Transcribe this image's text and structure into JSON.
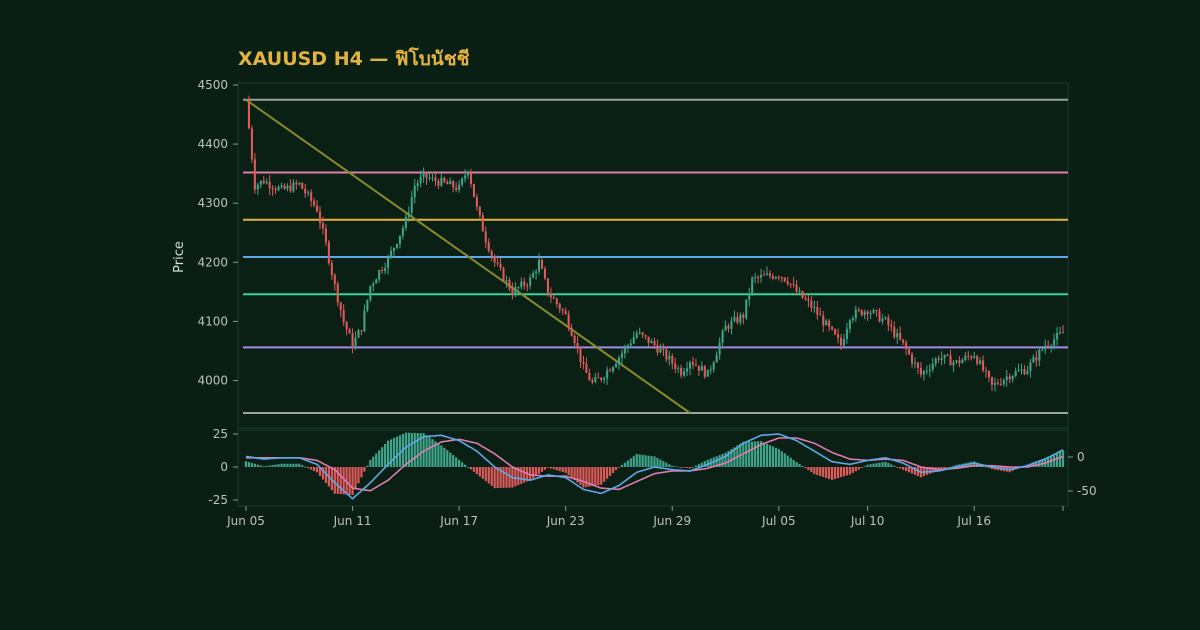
{
  "chart_data": [
    {
      "type": "candlestick",
      "title": "XAUUSD H4 — ฟิโบนัชชี",
      "ylabel": "Price",
      "ylim": [
        3945,
        4500
      ],
      "xlim_days": [
        "Jun 05",
        "Jul 21"
      ],
      "x_ticks": [
        "Jun 05",
        "Jun 11",
        "Jun 17",
        "Jun 23",
        "Jun 29",
        "Jul 05",
        "Jul 10",
        "Jul 16"
      ],
      "y_ticks": [
        4000,
        4100,
        4200,
        4300,
        4400,
        4500
      ],
      "grid": false,
      "price_path": [
        [
          "Jun 05",
          4475
        ],
        [
          "Jun 05",
          4330
        ],
        [
          "Jun 06",
          4338
        ],
        [
          "Jun 07",
          4322
        ],
        [
          "Jun 08",
          4332
        ],
        [
          "Jun 09",
          4290
        ],
        [
          "Jun 09",
          4230
        ],
        [
          "Jun 10",
          4160
        ],
        [
          "Jun 10",
          4100
        ],
        [
          "Jun 11",
          4060
        ],
        [
          "Jun 11",
          4090
        ],
        [
          "Jun 12",
          4160
        ],
        [
          "Jun 12",
          4185
        ],
        [
          "Jun 13",
          4205
        ],
        [
          "Jun 14",
          4270
        ],
        [
          "Jun 14",
          4330
        ],
        [
          "Jun 15",
          4345
        ],
        [
          "Jun 16",
          4335
        ],
        [
          "Jun 17",
          4325
        ],
        [
          "Jun 17",
          4360
        ],
        [
          "Jun 18",
          4290
        ],
        [
          "Jun 18",
          4240
        ],
        [
          "Jun 19",
          4200
        ],
        [
          "Jun 20",
          4150
        ],
        [
          "Jun 21",
          4170
        ],
        [
          "Jun 21",
          4200
        ],
        [
          "Jun 22",
          4150
        ],
        [
          "Jun 23",
          4110
        ],
        [
          "Jun 23",
          4070
        ],
        [
          "Jun 24",
          4020
        ],
        [
          "Jun 24",
          3995
        ],
        [
          "Jun 25",
          4005
        ],
        [
          "Jun 26",
          4040
        ],
        [
          "Jun 27",
          4080
        ],
        [
          "Jun 28",
          4060
        ],
        [
          "Jun 29",
          4030
        ],
        [
          "Jun 29",
          4015
        ],
        [
          "Jun 30",
          4035
        ],
        [
          "Jul 01",
          4010
        ],
        [
          "Jul 01",
          4050
        ],
        [
          "Jul 02",
          4090
        ],
        [
          "Jul 03",
          4110
        ],
        [
          "Jul 03",
          4170
        ],
        [
          "Jul 04",
          4175
        ],
        [
          "Jul 05",
          4180
        ],
        [
          "Jul 05",
          4170
        ],
        [
          "Jul 06",
          4150
        ],
        [
          "Jul 07",
          4120
        ],
        [
          "Jul 08",
          4080
        ],
        [
          "Jul 08",
          4060
        ],
        [
          "Jul 09",
          4110
        ],
        [
          "Jul 10",
          4120
        ],
        [
          "Jul 11",
          4100
        ],
        [
          "Jul 12",
          4060
        ],
        [
          "Jul 13",
          4010
        ],
        [
          "Jul 14",
          4040
        ],
        [
          "Jul 15",
          4030
        ],
        [
          "Jul 16",
          4045
        ],
        [
          "Jul 17",
          3990
        ],
        [
          "Jul 18",
          4010
        ],
        [
          "Jul 19",
          4020
        ],
        [
          "Jul 20",
          4060
        ],
        [
          "Jul 21",
          4080
        ]
      ],
      "fibonacci_levels": [
        {
          "price": 4475,
          "color": "#9aa3a0"
        },
        {
          "price": 4352,
          "color": "#e07bb0"
        },
        {
          "price": 4272,
          "color": "#e3b341"
        },
        {
          "price": 4209,
          "color": "#5fa8e8"
        },
        {
          "price": 4146,
          "color": "#34d399"
        },
        {
          "price": 4056,
          "color": "#a48be8"
        },
        {
          "price": 3945,
          "color": "#9aa3a0"
        }
      ],
      "trendline": {
        "from": [
          "Jun 05",
          4475
        ],
        "to": [
          "Jun 30",
          3945
        ],
        "color": "#8a8a2a"
      },
      "up_color": "#3fa58a",
      "down_color": "#e05a5a"
    },
    {
      "type": "macd",
      "y_ticks_left": [
        25,
        0,
        -25
      ],
      "y_ticks_right": [
        0,
        -50
      ],
      "ylim": [
        -27,
        25
      ],
      "line_colors": {
        "macd": "#5fa8e8",
        "signal": "#e07bb0"
      },
      "histogram_colors": {
        "positive": "#3fa58a",
        "negative": "#e05a5a"
      },
      "macd_path": [
        [
          "Jun 05",
          8
        ],
        [
          "Jun 06",
          6
        ],
        [
          "Jun 07",
          7
        ],
        [
          "Jun 08",
          7
        ],
        [
          "Jun 09",
          2
        ],
        [
          "Jun 10",
          -12
        ],
        [
          "Jun 11",
          -24
        ],
        [
          "Jun 12",
          -12
        ],
        [
          "Jun 13",
          2
        ],
        [
          "Jun 14",
          15
        ],
        [
          "Jun 15",
          23
        ],
        [
          "Jun 16",
          24
        ],
        [
          "Jun 17",
          20
        ],
        [
          "Jun 18",
          12
        ],
        [
          "Jun 19",
          0
        ],
        [
          "Jun 20",
          -8
        ],
        [
          "Jun 21",
          -10
        ],
        [
          "Jun 22",
          -6
        ],
        [
          "Jun 23",
          -8
        ],
        [
          "Jun 24",
          -17
        ],
        [
          "Jun 25",
          -20
        ],
        [
          "Jun 26",
          -14
        ],
        [
          "Jun 27",
          -4
        ],
        [
          "Jun 28",
          0
        ],
        [
          "Jun 29",
          -2
        ],
        [
          "Jun 30",
          -3
        ],
        [
          "Jul 01",
          2
        ],
        [
          "Jul 02",
          8
        ],
        [
          "Jul 03",
          18
        ],
        [
          "Jul 04",
          24
        ],
        [
          "Jul 05",
          25
        ],
        [
          "Jul 06",
          20
        ],
        [
          "Jul 07",
          12
        ],
        [
          "Jul 08",
          4
        ],
        [
          "Jul 09",
          2
        ],
        [
          "Jul 10",
          5
        ],
        [
          "Jul 11",
          7
        ],
        [
          "Jul 12",
          3
        ],
        [
          "Jul 13",
          -4
        ],
        [
          "Jul 14",
          -3
        ],
        [
          "Jul 15",
          0
        ],
        [
          "Jul 16",
          3
        ],
        [
          "Jul 17",
          0
        ],
        [
          "Jul 18",
          -2
        ],
        [
          "Jul 19",
          1
        ],
        [
          "Jul 20",
          6
        ],
        [
          "Jul 21",
          13
        ]
      ],
      "signal_path": [
        [
          "Jun 05",
          7
        ],
        [
          "Jun 06",
          7
        ],
        [
          "Jun 07",
          7
        ],
        [
          "Jun 08",
          7
        ],
        [
          "Jun 09",
          5
        ],
        [
          "Jun 10",
          -2
        ],
        [
          "Jun 11",
          -16
        ],
        [
          "Jun 12",
          -18
        ],
        [
          "Jun 13",
          -10
        ],
        [
          "Jun 14",
          2
        ],
        [
          "Jun 15",
          12
        ],
        [
          "Jun 16",
          19
        ],
        [
          "Jun 17",
          21
        ],
        [
          "Jun 18",
          18
        ],
        [
          "Jun 19",
          10
        ],
        [
          "Jun 20",
          0
        ],
        [
          "Jun 21",
          -6
        ],
        [
          "Jun 22",
          -7
        ],
        [
          "Jun 23",
          -7
        ],
        [
          "Jun 24",
          -11
        ],
        [
          "Jun 25",
          -16
        ],
        [
          "Jun 26",
          -17
        ],
        [
          "Jun 27",
          -11
        ],
        [
          "Jun 28",
          -5
        ],
        [
          "Jun 29",
          -3
        ],
        [
          "Jun 30",
          -3
        ],
        [
          "Jul 01",
          -1
        ],
        [
          "Jul 02",
          3
        ],
        [
          "Jul 03",
          10
        ],
        [
          "Jul 04",
          17
        ],
        [
          "Jul 05",
          22
        ],
        [
          "Jul 06",
          22
        ],
        [
          "Jul 07",
          18
        ],
        [
          "Jul 08",
          11
        ],
        [
          "Jul 09",
          6
        ],
        [
          "Jul 10",
          5
        ],
        [
          "Jul 11",
          6
        ],
        [
          "Jul 12",
          5
        ],
        [
          "Jul 13",
          0
        ],
        [
          "Jul 14",
          -2
        ],
        [
          "Jul 15",
          -1
        ],
        [
          "Jul 16",
          1
        ],
        [
          "Jul 17",
          1
        ],
        [
          "Jul 18",
          0
        ],
        [
          "Jul 19",
          0
        ],
        [
          "Jul 20",
          3
        ],
        [
          "Jul 21",
          8
        ]
      ]
    }
  ]
}
